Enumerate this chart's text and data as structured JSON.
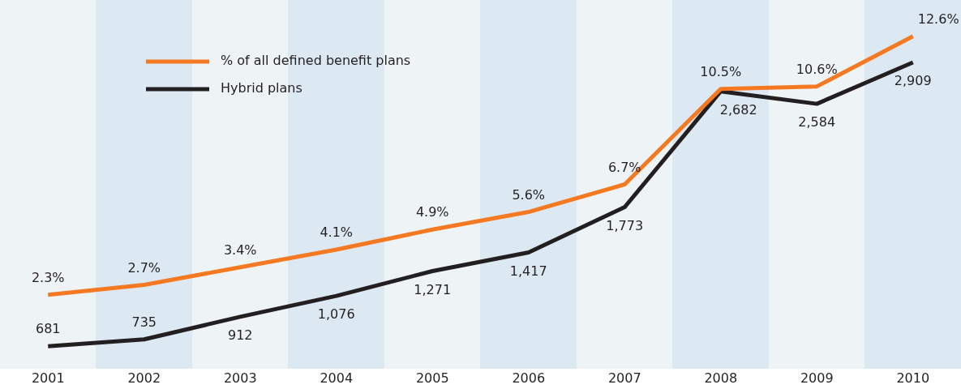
{
  "chart_data": {
    "type": "line",
    "categories": [
      "2001",
      "2002",
      "2003",
      "2004",
      "2005",
      "2006",
      "2007",
      "2008",
      "2009",
      "2010"
    ],
    "series": [
      {
        "name": "% of all defined benefit plans",
        "color": "#f47920",
        "values": [
          2.3,
          2.7,
          3.4,
          4.1,
          4.9,
          5.6,
          6.7,
          10.5,
          10.6,
          12.6
        ],
        "value_labels": [
          "2.3%",
          "2.7%",
          "3.4%",
          "4.1%",
          "4.9%",
          "5.6%",
          "6.7%",
          "10.5%",
          "10.6%",
          "12.6%"
        ]
      },
      {
        "name": "Hybrid plans",
        "color": "#231f20",
        "axis": "y2",
        "values": [
          681,
          735,
          912,
          1076,
          1271,
          1417,
          1773,
          2682,
          2584,
          2909
        ],
        "value_labels": [
          "681",
          "735",
          "912",
          "1,076",
          "1,271",
          "1,417",
          "1,773",
          "2,682",
          "2,584",
          "2,909"
        ]
      }
    ],
    "tick_labels": "x",
    "legend": "top left",
    "marker": "none",
    "line_style": "solid"
  }
}
